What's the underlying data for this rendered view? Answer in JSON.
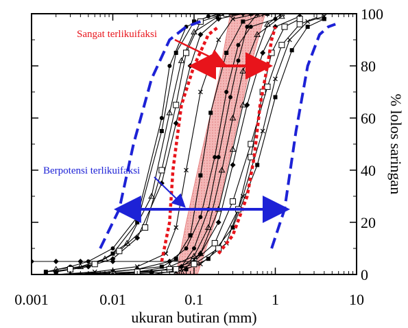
{
  "chart_data": {
    "type": "line",
    "xlabel": "ukuran butiran (mm)",
    "ylabel": "% lolos saringan",
    "x_scale": "log",
    "xlim": [
      0.001,
      10
    ],
    "ylim": [
      0,
      100
    ],
    "x_ticks": [
      0.001,
      0.01,
      0.1,
      1,
      10
    ],
    "x_tick_labels": [
      "0.001",
      "0.01",
      "0.1",
      "1",
      "10"
    ],
    "y_ticks": [
      0,
      20,
      40,
      60,
      80,
      100
    ],
    "y_tick_labels": [
      "0",
      "20",
      "40",
      "60",
      "80",
      "100"
    ],
    "y_axis_side": "right",
    "grid": false,
    "annotations": [
      {
        "text": "Sangat terlikuifaksi",
        "color": "#e8141b"
      },
      {
        "text": "Berpotensi terlikuifaksi",
        "color": "#1d22d6"
      }
    ],
    "bands": {
      "shaded_band": {
        "color": "#e07070",
        "left": [
          [
            0.06,
            0
          ],
          [
            0.08,
            20
          ],
          [
            0.12,
            45
          ],
          [
            0.2,
            75
          ],
          [
            0.28,
            100
          ]
        ],
        "right": [
          [
            0.11,
            0
          ],
          [
            0.18,
            20
          ],
          [
            0.3,
            50
          ],
          [
            0.5,
            80
          ],
          [
            0.75,
            100
          ]
        ]
      },
      "red_dotted_left": [
        [
          0.04,
          5
        ],
        [
          0.05,
          20
        ],
        [
          0.055,
          40
        ],
        [
          0.07,
          65
        ],
        [
          0.1,
          80
        ],
        [
          0.15,
          92
        ],
        [
          0.2,
          95
        ]
      ],
      "red_dotted_right": [
        [
          0.2,
          8
        ],
        [
          0.3,
          15
        ],
        [
          0.45,
          30
        ],
        [
          0.55,
          45
        ],
        [
          0.65,
          65
        ],
        [
          0.8,
          80
        ],
        [
          0.9,
          90
        ],
        [
          1.0,
          95
        ]
      ],
      "blue_dashed_left": [
        [
          0.007,
          10
        ],
        [
          0.012,
          25
        ],
        [
          0.018,
          50
        ],
        [
          0.03,
          75
        ],
        [
          0.05,
          90
        ],
        [
          0.08,
          95
        ],
        [
          0.12,
          97
        ]
      ],
      "blue_dashed_right": [
        [
          0.9,
          10
        ],
        [
          1.3,
          25
        ],
        [
          1.8,
          55
        ],
        [
          2.5,
          80
        ],
        [
          3.5,
          92
        ],
        [
          4.5,
          95
        ],
        [
          5.5,
          96
        ]
      ]
    },
    "arrows": [
      {
        "name": "red-range-arrow",
        "color": "#e8141b",
        "x": [
          0.1,
          0.8
        ],
        "y": 80
      },
      {
        "name": "blue-range-arrow",
        "color": "#1d22d6",
        "x": [
          0.012,
          1.3
        ],
        "y": 25
      }
    ],
    "series": [
      {
        "values": [
          [
            0.0015,
            1
          ],
          [
            0.003,
            2
          ],
          [
            0.006,
            4
          ],
          [
            0.01,
            8
          ],
          [
            0.02,
            20
          ],
          [
            0.04,
            55
          ],
          [
            0.06,
            85
          ],
          [
            0.1,
            97
          ],
          [
            0.2,
            100
          ],
          [
            0.5,
            100
          ]
        ]
      },
      {
        "values": [
          [
            0.0015,
            1
          ],
          [
            0.003,
            3
          ],
          [
            0.005,
            5
          ],
          [
            0.01,
            10
          ],
          [
            0.02,
            22
          ],
          [
            0.04,
            60
          ],
          [
            0.05,
            80
          ],
          [
            0.08,
            95
          ],
          [
            0.15,
            99
          ],
          [
            0.5,
            100
          ]
        ]
      },
      {
        "values": [
          [
            0.002,
            2
          ],
          [
            0.004,
            3
          ],
          [
            0.008,
            6
          ],
          [
            0.015,
            12
          ],
          [
            0.03,
            30
          ],
          [
            0.05,
            62
          ],
          [
            0.07,
            82
          ],
          [
            0.1,
            93
          ],
          [
            0.2,
            99
          ]
        ]
      },
      {
        "values": [
          [
            0.002,
            1
          ],
          [
            0.005,
            3
          ],
          [
            0.01,
            6
          ],
          [
            0.02,
            14
          ],
          [
            0.04,
            35
          ],
          [
            0.06,
            58
          ],
          [
            0.09,
            80
          ],
          [
            0.12,
            92
          ],
          [
            0.2,
            98
          ],
          [
            0.4,
            100
          ]
        ]
      },
      {
        "values": [
          [
            0.003,
            2
          ],
          [
            0.006,
            4
          ],
          [
            0.012,
            9
          ],
          [
            0.025,
            18
          ],
          [
            0.04,
            40
          ],
          [
            0.06,
            65
          ],
          [
            0.08,
            85
          ],
          [
            0.12,
            97
          ],
          [
            0.25,
            100
          ]
        ]
      },
      {
        "values": [
          [
            0.002,
            0
          ],
          [
            0.006,
            1
          ],
          [
            0.02,
            3
          ],
          [
            0.045,
            8
          ],
          [
            0.06,
            18
          ],
          [
            0.08,
            40
          ],
          [
            0.12,
            70
          ],
          [
            0.2,
            90
          ],
          [
            0.3,
            98
          ],
          [
            0.6,
            100
          ]
        ]
      },
      {
        "values": [
          [
            0.002,
            0
          ],
          [
            0.01,
            1
          ],
          [
            0.04,
            3
          ],
          [
            0.06,
            6
          ],
          [
            0.09,
            15
          ],
          [
            0.12,
            38
          ],
          [
            0.16,
            62
          ],
          [
            0.25,
            85
          ],
          [
            0.4,
            97
          ],
          [
            0.8,
            100
          ]
        ]
      },
      {
        "values": [
          [
            0.004,
            0
          ],
          [
            0.02,
            2
          ],
          [
            0.05,
            5
          ],
          [
            0.08,
            10
          ],
          [
            0.12,
            22
          ],
          [
            0.18,
            45
          ],
          [
            0.25,
            70
          ],
          [
            0.35,
            88
          ],
          [
            0.5,
            95
          ],
          [
            1.0,
            98
          ]
        ]
      },
      {
        "values": [
          [
            0.003,
            0
          ],
          [
            0.02,
            1
          ],
          [
            0.05,
            3
          ],
          [
            0.1,
            7
          ],
          [
            0.15,
            18
          ],
          [
            0.22,
            40
          ],
          [
            0.3,
            60
          ],
          [
            0.4,
            78
          ],
          [
            0.6,
            92
          ],
          [
            1.2,
            99
          ]
        ]
      },
      {
        "values": [
          [
            0.005,
            0
          ],
          [
            0.03,
            1
          ],
          [
            0.07,
            3
          ],
          [
            0.12,
            8
          ],
          [
            0.2,
            20
          ],
          [
            0.3,
            42
          ],
          [
            0.45,
            65
          ],
          [
            0.7,
            85
          ],
          [
            1.0,
            95
          ],
          [
            2.0,
            99
          ]
        ]
      },
      {
        "values": [
          [
            0.01,
            0
          ],
          [
            0.05,
            2
          ],
          [
            0.1,
            5
          ],
          [
            0.18,
            12
          ],
          [
            0.3,
            28
          ],
          [
            0.5,
            50
          ],
          [
            0.8,
            72
          ],
          [
            1.2,
            88
          ],
          [
            2.0,
            96
          ],
          [
            3.5,
            99
          ]
        ]
      },
      {
        "values": [
          [
            0.01,
            0
          ],
          [
            0.06,
            1
          ],
          [
            0.12,
            4
          ],
          [
            0.25,
            12
          ],
          [
            0.4,
            30
          ],
          [
            0.7,
            55
          ],
          [
            1.0,
            75
          ],
          [
            1.5,
            90
          ],
          [
            2.5,
            97
          ],
          [
            4.0,
            99
          ]
        ]
      },
      {
        "values": [
          [
            0.03,
            0
          ],
          [
            0.08,
            2
          ],
          [
            0.15,
            6
          ],
          [
            0.3,
            18
          ],
          [
            0.6,
            42
          ],
          [
            1.0,
            68
          ],
          [
            1.6,
            86
          ],
          [
            2.5,
            95
          ],
          [
            4.0,
            98
          ]
        ]
      },
      {
        "values": [
          [
            0.07,
            3
          ],
          [
            0.1,
            10
          ],
          [
            0.15,
            25
          ],
          [
            0.2,
            45
          ],
          [
            0.28,
            68
          ],
          [
            0.35,
            82
          ],
          [
            0.45,
            95
          ],
          [
            0.6,
            100
          ]
        ]
      },
      {
        "values": [
          [
            0.07,
            1
          ],
          [
            0.12,
            8
          ],
          [
            0.2,
            25
          ],
          [
            0.3,
            48
          ],
          [
            0.4,
            65
          ],
          [
            0.55,
            82
          ],
          [
            0.8,
            96
          ],
          [
            1.2,
            100
          ]
        ]
      },
      {
        "values": [
          [
            0.001,
            5
          ],
          [
            0.002,
            5
          ],
          [
            0.004,
            5
          ],
          [
            0.01,
            5
          ],
          [
            0.05,
            5
          ],
          [
            0.1,
            5
          ]
        ]
      },
      {
        "values": [
          [
            0.02,
            1
          ],
          [
            0.06,
            2
          ],
          [
            0.1,
            4
          ],
          [
            0.2,
            10
          ],
          [
            0.35,
            25
          ],
          [
            0.5,
            45
          ],
          [
            0.7,
            70
          ],
          [
            0.9,
            85
          ],
          [
            1.3,
            95
          ],
          [
            2.0,
            98
          ]
        ]
      }
    ]
  }
}
